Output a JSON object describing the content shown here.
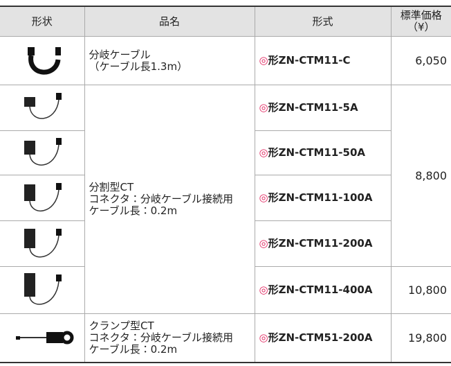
{
  "table": {
    "header": [
      [
        "形状"
      ],
      [
        "品名"
      ],
      [
        "形式"
      ],
      [
        "標準価格",
        "（¥）"
      ]
    ],
    "rows": [
      {
        "name": [
          "分岐ケーブル",
          "（ケーブル長1.3m）"
        ],
        "mark": "◎",
        "model": "形ZN-CTM11-C",
        "price": "6,050"
      },
      {
        "name": [
          "分割型CT",
          "コネクタ：分岐ケーブル接続用",
          "ケーブル長：0.2m"
        ],
        "mark": "◎",
        "model": "形ZN-CTM11-5A",
        "price": "8,800"
      },
      {
        "mark": "◎",
        "model": "形ZN-CTM11-50A"
      },
      {
        "mark": "◎",
        "model": "形ZN-CTM11-100A"
      },
      {
        "mark": "◎",
        "model": "形ZN-CTM11-200A"
      },
      {
        "mark": "◎",
        "model": "形ZN-CTM11-400A",
        "price": "10,800"
      },
      {
        "name": [
          "クランプ型CT",
          "コネクタ：分岐ケーブル接続用",
          "ケーブル長：0.2m"
        ],
        "mark": "◎",
        "model": "形ZN-CTM51-200A",
        "price": "19,800"
      }
    ]
  }
}
